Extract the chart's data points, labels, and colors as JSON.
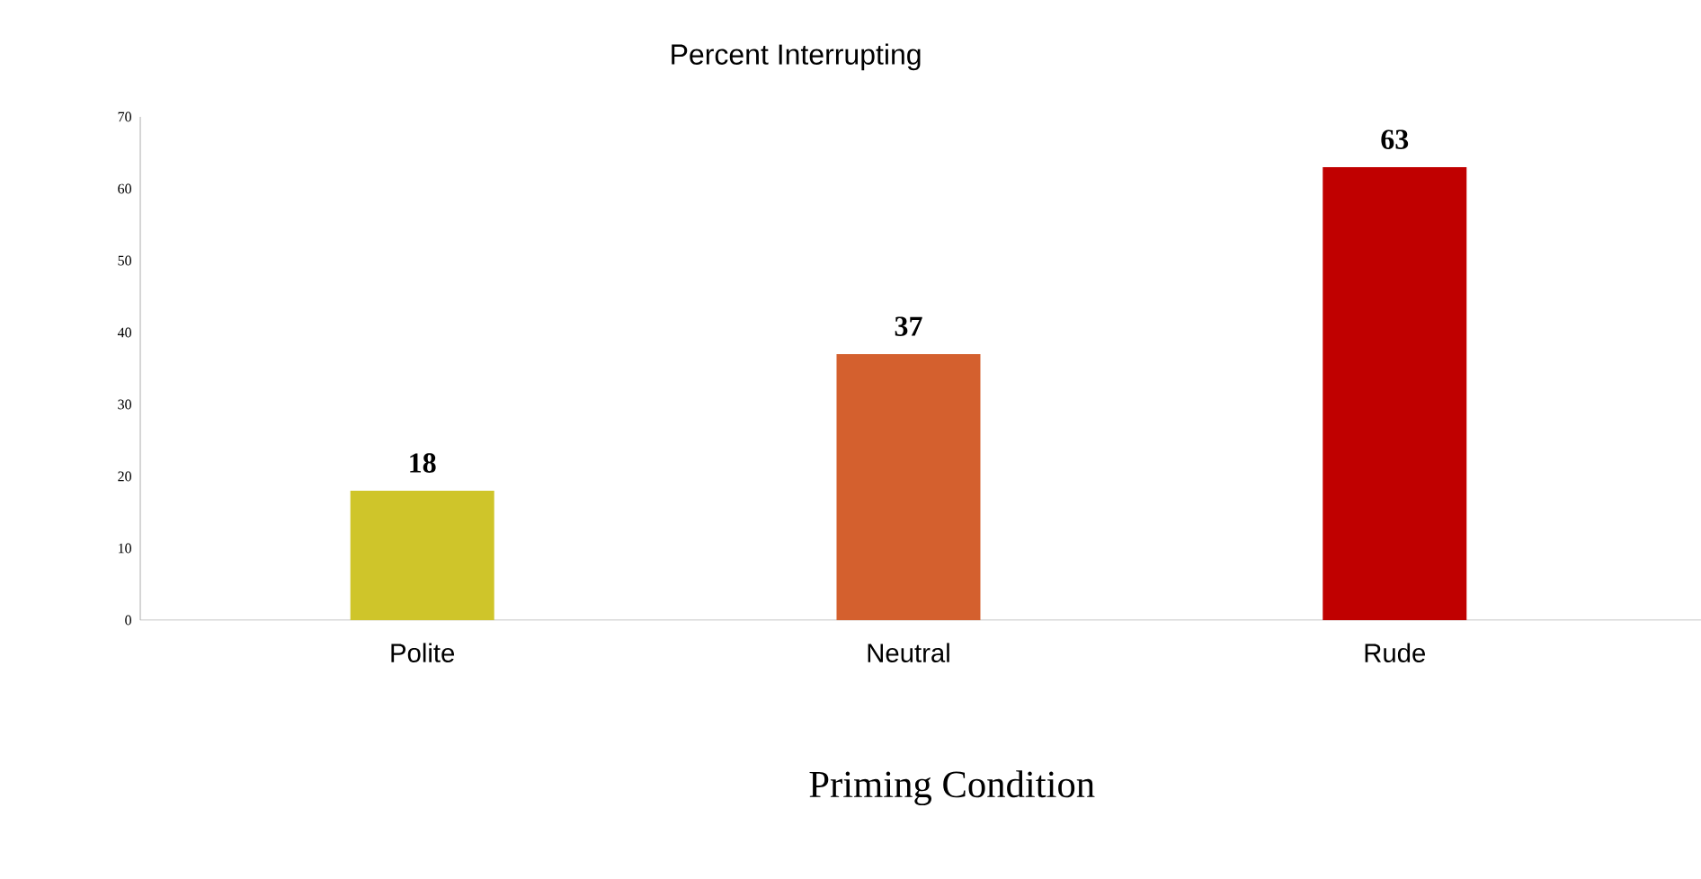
{
  "chart_data": {
    "type": "bar",
    "title": "Percent Interrupting",
    "xlabel": "Priming Condition",
    "categories": [
      "Polite",
      "Neutral",
      "Rude"
    ],
    "values": [
      18,
      37,
      63
    ],
    "colors": [
      "#cfc52a",
      "#d4602e",
      "#c00000"
    ],
    "ylim": [
      0,
      70
    ],
    "yticks": [
      0,
      10,
      20,
      30,
      40,
      50,
      60,
      70
    ],
    "data_labels": true,
    "grid": false
  }
}
